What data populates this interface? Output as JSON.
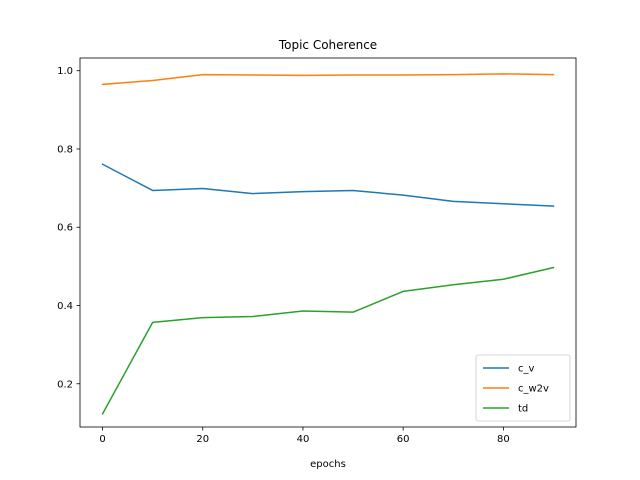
{
  "chart_data": {
    "type": "line",
    "title": "Topic Coherence",
    "xlabel": "epochs",
    "ylabel": "",
    "xlim": [
      -4.5,
      94.5
    ],
    "ylim": [
      0.0895,
      1.0325
    ],
    "xticks": [
      0,
      20,
      40,
      60,
      80
    ],
    "yticks": [
      0.2,
      0.4,
      0.6,
      0.8,
      1.0
    ],
    "ytick_labels": [
      "0.2",
      "0.4",
      "0.6",
      "0.8",
      "1.0"
    ],
    "grid": false,
    "legend_position": "lower-right",
    "x": [
      0,
      10,
      20,
      30,
      40,
      50,
      60,
      70,
      80,
      90
    ],
    "series": [
      {
        "name": "c_v",
        "color": "#1f77b4",
        "values": [
          0.761,
          0.694,
          0.699,
          0.686,
          0.691,
          0.694,
          0.682,
          0.666,
          0.66,
          0.654
        ]
      },
      {
        "name": "c_w2v",
        "color": "#ff7f0e",
        "values": [
          0.965,
          0.975,
          0.99,
          0.989,
          0.988,
          0.989,
          0.989,
          0.99,
          0.992,
          0.99
        ]
      },
      {
        "name": "td",
        "color": "#2ca02c",
        "values": [
          0.123,
          0.357,
          0.369,
          0.372,
          0.386,
          0.383,
          0.436,
          0.453,
          0.467,
          0.497
        ]
      }
    ]
  }
}
